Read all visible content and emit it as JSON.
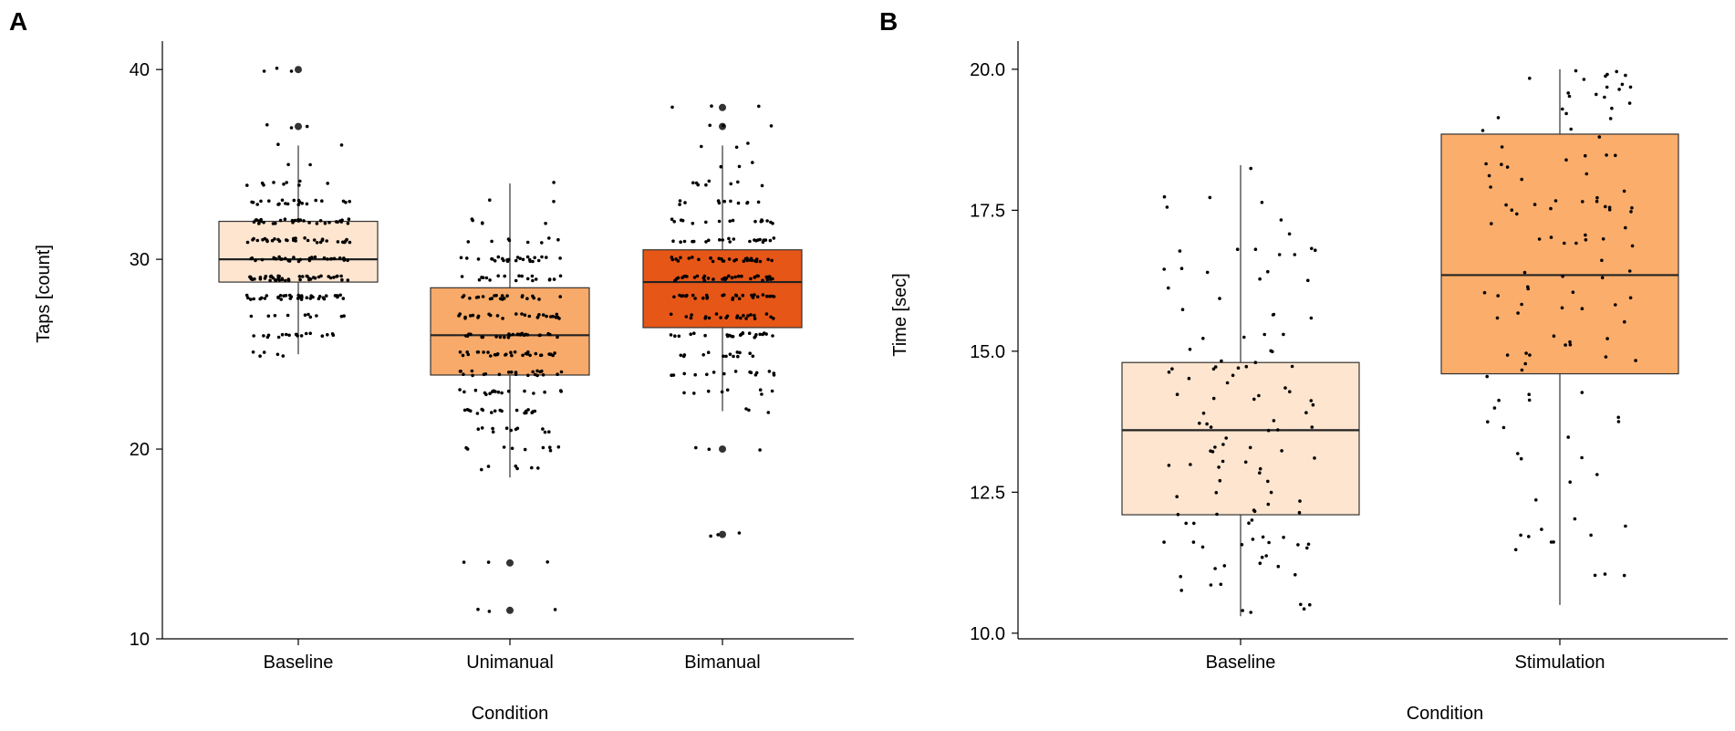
{
  "panels": [
    {
      "label": "A",
      "chart_data": {
        "type": "boxplot",
        "title": "",
        "xlabel": "Condition",
        "ylabel": "Taps [count]",
        "ylim": [
          10,
          41.5
        ],
        "yticks": [
          10,
          20,
          30,
          40
        ],
        "categories": [
          "Baseline",
          "Unimanual",
          "Bimanual"
        ],
        "colors": [
          "#fde5cf",
          "#f7aa69",
          "#e65617"
        ],
        "boxes": [
          {
            "category": "Baseline",
            "q1": 28.8,
            "median": 30.0,
            "q3": 32.0,
            "whisker_low": 25.0,
            "whisker_high": 36.0,
            "outliers": [
              37,
              40
            ]
          },
          {
            "category": "Unimanual",
            "q1": 23.9,
            "median": 26.0,
            "q3": 28.5,
            "whisker_low": 18.5,
            "whisker_high": 34.0,
            "outliers": [
              14,
              11.5
            ]
          },
          {
            "category": "Bimanual",
            "q1": 26.4,
            "median": 28.8,
            "q3": 30.5,
            "whisker_low": 22.0,
            "whisker_high": 36.0,
            "outliers": [
              37,
              38,
              20,
              15.5
            ]
          }
        ],
        "jitter_points_per_group": 250
      }
    },
    {
      "label": "B",
      "chart_data": {
        "type": "boxplot",
        "title": "",
        "xlabel": "Condition",
        "ylabel": "Time [sec]",
        "ylim": [
          9.9,
          20.5
        ],
        "yticks": [
          10.0,
          12.5,
          15.0,
          17.5,
          20.0
        ],
        "ytick_labels": [
          "10.0",
          "12.5",
          "15.0",
          "17.5",
          "20.0"
        ],
        "categories": [
          "Baseline",
          "Stimulation"
        ],
        "colors": [
          "#fde5cf",
          "#fbad6b"
        ],
        "boxes": [
          {
            "category": "Baseline",
            "q1": 12.1,
            "median": 13.6,
            "q3": 14.8,
            "whisker_low": 10.3,
            "whisker_high": 18.3,
            "outliers": []
          },
          {
            "category": "Stimulation",
            "q1": 14.6,
            "median": 16.35,
            "q3": 18.85,
            "whisker_low": 10.5,
            "whisker_high": 20.0,
            "outliers": []
          }
        ],
        "jitter_points_per_group": 120
      }
    }
  ]
}
